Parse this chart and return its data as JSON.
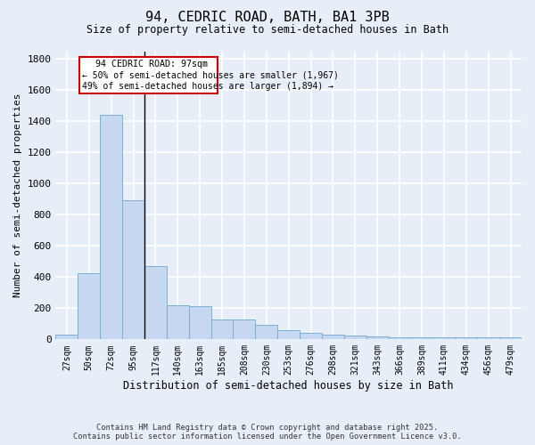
{
  "title": "94, CEDRIC ROAD, BATH, BA1 3PB",
  "subtitle": "Size of property relative to semi-detached houses in Bath",
  "xlabel": "Distribution of semi-detached houses by size in Bath",
  "ylabel": "Number of semi-detached properties",
  "bar_color": "#c5d8f0",
  "bar_edge_color": "#7bafd4",
  "categories": [
    "27sqm",
    "50sqm",
    "72sqm",
    "95sqm",
    "117sqm",
    "140sqm",
    "163sqm",
    "185sqm",
    "208sqm",
    "230sqm",
    "253sqm",
    "276sqm",
    "298sqm",
    "321sqm",
    "343sqm",
    "366sqm",
    "389sqm",
    "411sqm",
    "434sqm",
    "456sqm",
    "479sqm"
  ],
  "values": [
    28,
    425,
    1440,
    895,
    470,
    220,
    215,
    130,
    130,
    92,
    60,
    43,
    30,
    22,
    18,
    14,
    14,
    12,
    12,
    14,
    12
  ],
  "ylim": [
    0,
    1850
  ],
  "yticks": [
    0,
    200,
    400,
    600,
    800,
    1000,
    1200,
    1400,
    1600,
    1800
  ],
  "marker_label": "94 CEDRIC ROAD: 97sqm",
  "annotation_line1": "← 50% of semi-detached houses are smaller (1,967)",
  "annotation_line2": "49% of semi-detached houses are larger (1,894) →",
  "box_color": "#ffffff",
  "box_edge_color": "#cc0000",
  "vline_color": "#000000",
  "fig_bg_color": "#e8eef8",
  "plot_bg_color": "#e8eef8",
  "grid_color": "#ffffff",
  "footer_line1": "Contains HM Land Registry data © Crown copyright and database right 2025.",
  "footer_line2": "Contains public sector information licensed under the Open Government Licence v3.0."
}
